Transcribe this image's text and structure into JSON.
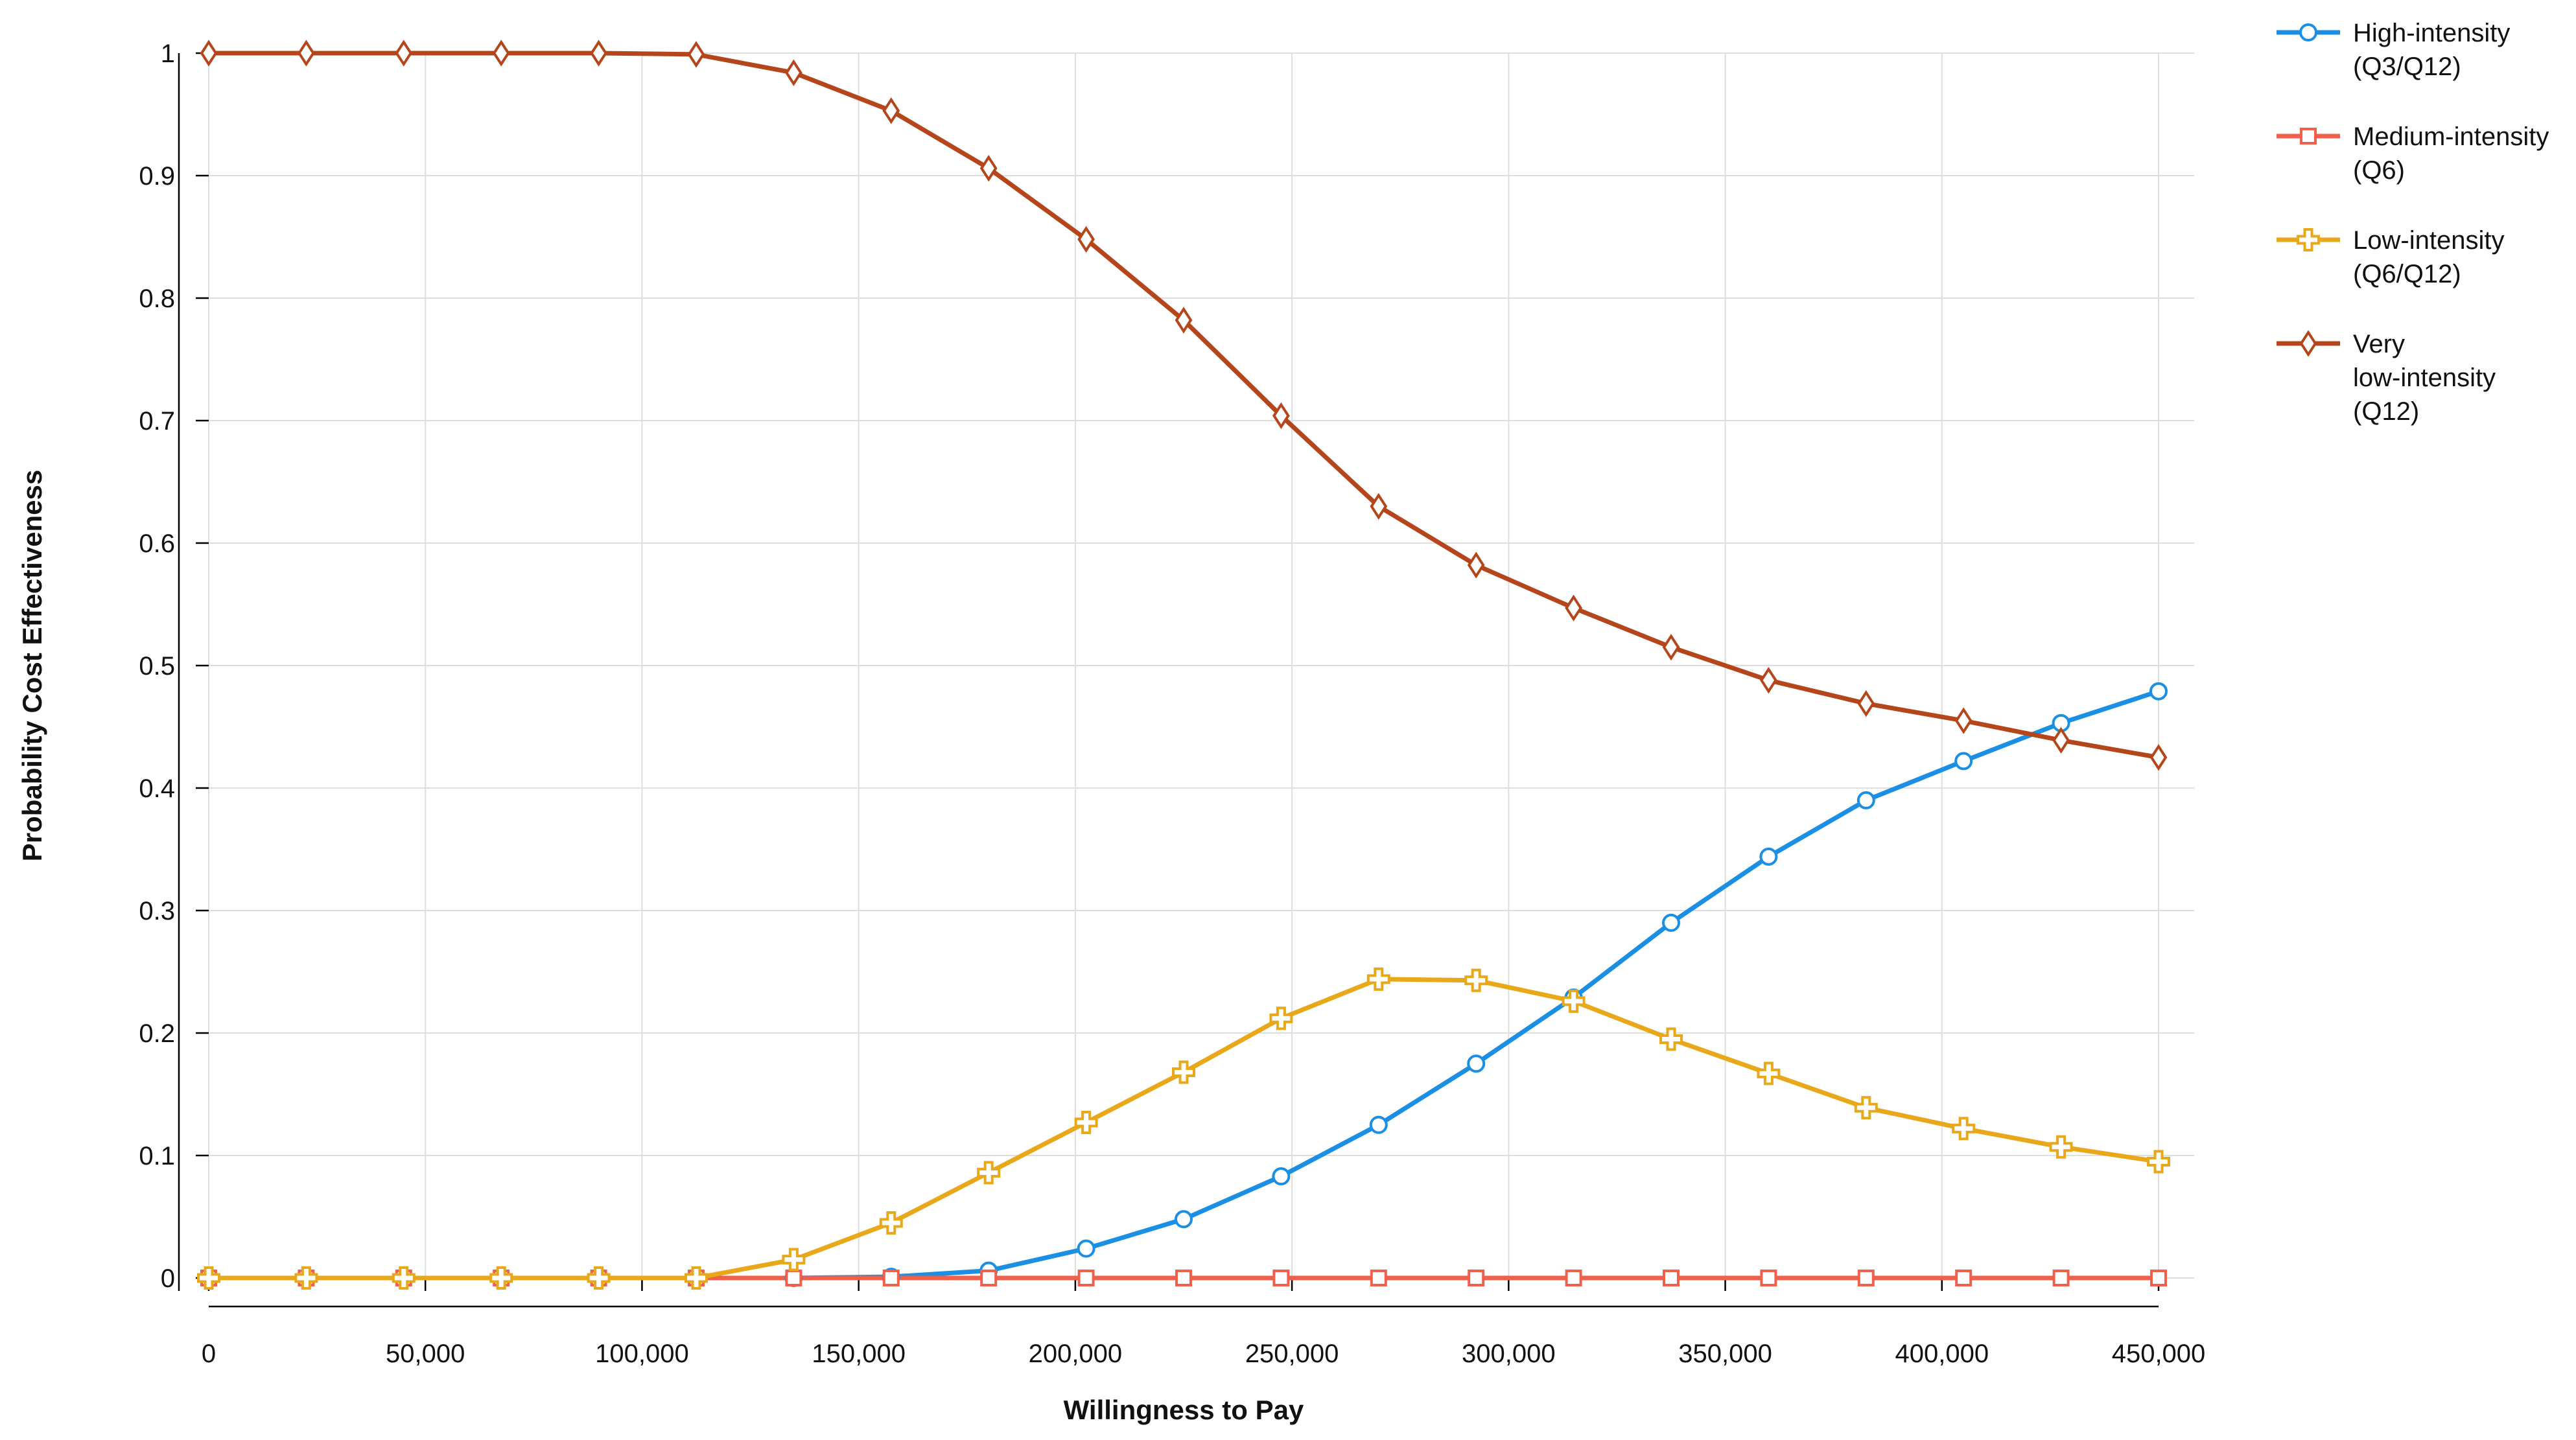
{
  "chart_data": {
    "type": "line",
    "title": "",
    "xlabel": "Willingness to Pay",
    "ylabel": "Probability Cost Effectiveness",
    "xlim": [
      0,
      450000
    ],
    "ylim": [
      0,
      1
    ],
    "grid": true,
    "legend_position": "top-right",
    "x_ticks": [
      0,
      50000,
      100000,
      150000,
      200000,
      250000,
      300000,
      350000,
      400000,
      450000
    ],
    "x_tick_labels": [
      "0",
      "50,000",
      "100,000",
      "150,000",
      "200,000",
      "250,000",
      "300,000",
      "350,000",
      "400,000",
      "450,000"
    ],
    "y_ticks": [
      0,
      0.1,
      0.2,
      0.3,
      0.4,
      0.5,
      0.6,
      0.7,
      0.8,
      0.9,
      1
    ],
    "y_tick_labels": [
      "0",
      "0.1",
      "0.2",
      "0.3",
      "0.4",
      "0.5",
      "0.6",
      "0.7",
      "0.8",
      "0.9",
      "1"
    ],
    "x": [
      0,
      22500,
      45000,
      67500,
      90000,
      112500,
      135000,
      157500,
      180000,
      202500,
      225000,
      247500,
      270000,
      292500,
      315000,
      337500,
      360000,
      382500,
      405000,
      427500,
      450000
    ],
    "series": [
      {
        "name": "High-intensity (Q3/Q12)",
        "label_lines": [
          "High-intensity",
          "(Q3/Q12)"
        ],
        "color": "#1a8fe3",
        "marker": "circle",
        "values": [
          0,
          0,
          0,
          0,
          0,
          0,
          0,
          0.001,
          0.006,
          0.024,
          0.048,
          0.083,
          0.125,
          0.175,
          0.229,
          0.29,
          0.344,
          0.39,
          0.422,
          0.453,
          0.479
        ]
      },
      {
        "name": "Medium-intensity (Q6)",
        "label_lines": [
          "Medium-intensity",
          "(Q6)"
        ],
        "color": "#f0604a",
        "marker": "square",
        "values": [
          0,
          0,
          0,
          0,
          0,
          0,
          0,
          0,
          0,
          0,
          0,
          0,
          0,
          0,
          0,
          0,
          0,
          0,
          0,
          0,
          0
        ]
      },
      {
        "name": "Low-intensity (Q6/Q12)",
        "label_lines": [
          "Low-intensity",
          "(Q6/Q12)"
        ],
        "color": "#e8a81a",
        "marker": "cross",
        "values": [
          0,
          0,
          0,
          0,
          0,
          0,
          0.015,
          0.045,
          0.086,
          0.127,
          0.168,
          0.212,
          0.244,
          0.243,
          0.226,
          0.195,
          0.167,
          0.139,
          0.122,
          0.107,
          0.095
        ]
      },
      {
        "name": "Very low-intensity (Q12)",
        "label_lines": [
          "Very",
          "low-intensity",
          "(Q12)"
        ],
        "color": "#b5451b",
        "marker": "diamond",
        "values": [
          1,
          1,
          1,
          1,
          1,
          0.999,
          0.984,
          0.953,
          0.906,
          0.848,
          0.782,
          0.704,
          0.63,
          0.582,
          0.547,
          0.515,
          0.488,
          0.469,
          0.455,
          0.439,
          0.425
        ]
      }
    ]
  }
}
